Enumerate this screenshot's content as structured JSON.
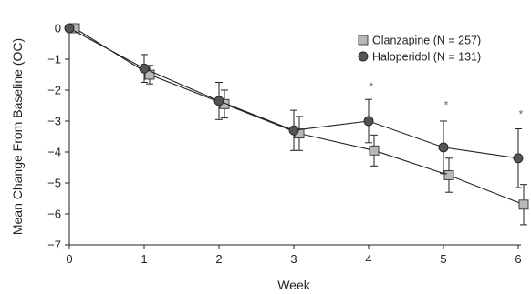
{
  "chart_data": {
    "type": "line",
    "xlabel": "Week",
    "ylabel": "Mean Change From Baseline (OC)",
    "xlim": [
      0,
      6
    ],
    "ylim": [
      -7,
      0
    ],
    "x_ticks": [
      "0",
      "1",
      "2",
      "3",
      "4",
      "5",
      "6"
    ],
    "y_ticks": [
      "0",
      "−1",
      "−2",
      "−3",
      "−4",
      "−5",
      "−6",
      "−7"
    ],
    "grid": false,
    "legend_position": "top-right",
    "series": [
      {
        "name": "Olanzapine (N = 257)",
        "marker": "square",
        "color": "#b8b8b8",
        "x": [
          0,
          1,
          2,
          3,
          4,
          5,
          6
        ],
        "y": [
          0,
          -1.5,
          -2.45,
          -3.4,
          -3.95,
          -4.75,
          -5.7
        ],
        "err": [
          0,
          0.3,
          0.45,
          0.55,
          0.5,
          0.55,
          0.65
        ]
      },
      {
        "name": "Haloperidol (N = 131)",
        "marker": "circle",
        "color": "#555555",
        "x": [
          0,
          1,
          2,
          3,
          4,
          5,
          6
        ],
        "y": [
          0,
          -1.3,
          -2.35,
          -3.3,
          -3.0,
          -3.85,
          -4.2
        ],
        "err": [
          0,
          0.45,
          0.6,
          0.65,
          0.7,
          0.85,
          0.95
        ]
      }
    ],
    "annotations": [
      {
        "x": 4,
        "y": -2.0,
        "text": "*"
      },
      {
        "x": 5,
        "y": -2.6,
        "text": "*"
      },
      {
        "x": 6,
        "y": -2.9,
        "text": "*"
      }
    ]
  }
}
